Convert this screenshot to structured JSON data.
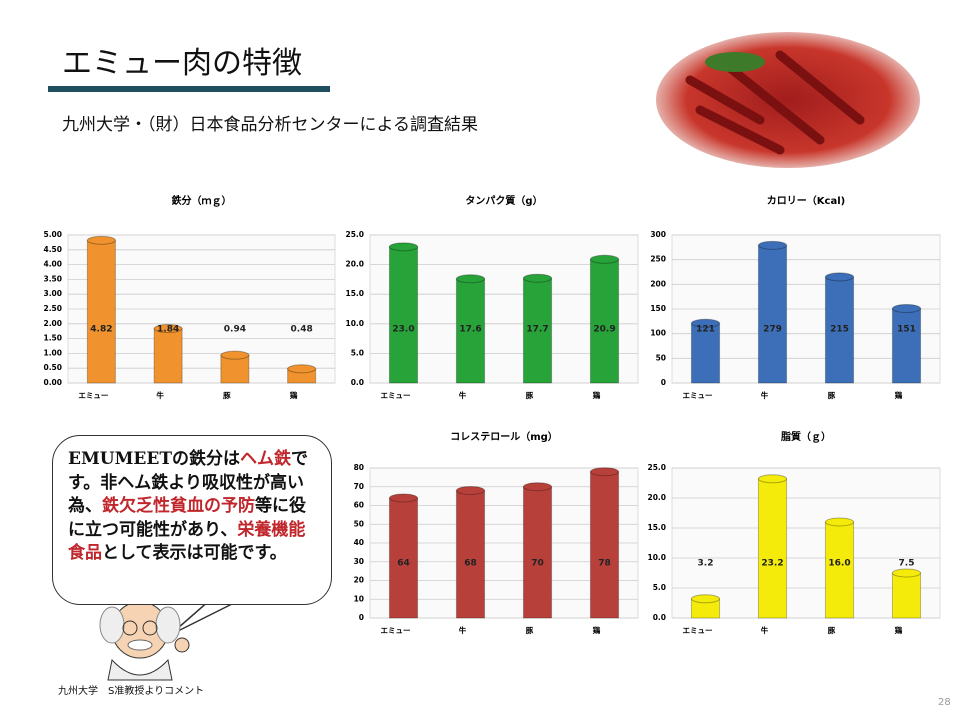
{
  "title": "エミュー肉の特徴",
  "subtitle": "九州大学・（財）日本食品分析センターによる調査結果",
  "comment": [
    {
      "text": "EMUMEETの鉄分は",
      "highlight": false
    },
    {
      "text": "ヘム鉄",
      "highlight": true
    },
    {
      "text": "です。非ヘム鉄より吸収性が高い為、",
      "highlight": false
    },
    {
      "text": "鉄欠乏性貧血の予防",
      "highlight": true
    },
    {
      "text": "等に役に立つ可能性があり、",
      "highlight": false
    },
    {
      "text": "栄養機能食品",
      "highlight": true
    },
    {
      "text": "として表示は可能です。",
      "highlight": false
    }
  ],
  "caption": "九州大学　S准教授よりコメント",
  "page_number": "28",
  "chart_data": [
    {
      "type": "bar",
      "title": "鉄分（ｍｇ）",
      "categories": [
        "エミュー",
        "牛",
        "豚",
        "鶏"
      ],
      "values": [
        4.82,
        1.84,
        0.94,
        0.48
      ],
      "color": "#f0922e",
      "ylim": [
        0,
        5
      ],
      "yticks": [
        {
          "value": 0,
          "label": "0.00"
        },
        {
          "value": 0.5,
          "label": "0.50"
        },
        {
          "value": 1,
          "label": "1.00"
        },
        {
          "value": 1.5,
          "label": "1.50"
        },
        {
          "value": 2,
          "label": "2.00"
        },
        {
          "value": 2.5,
          "label": "2.50"
        },
        {
          "value": 3,
          "label": "3.00"
        },
        {
          "value": 3.5,
          "label": "3.50"
        },
        {
          "value": 4,
          "label": "4.00"
        },
        {
          "value": 4.5,
          "label": "4.50"
        },
        {
          "value": 5,
          "label": "5.00"
        }
      ],
      "grid": true
    },
    {
      "type": "bar",
      "title": "タンパク質（g）",
      "categories": [
        "エミュー",
        "牛",
        "豚",
        "鶏"
      ],
      "values": [
        23,
        17.6,
        17.7,
        20.9
      ],
      "value_labels": [
        "23.0",
        "17.6",
        "17.7",
        "20.9"
      ],
      "color": "#27a33a",
      "ylim": [
        0,
        25
      ],
      "yticks": [
        {
          "value": 0,
          "label": "0.0"
        },
        {
          "value": 5,
          "label": "5.0"
        },
        {
          "value": 10,
          "label": "10.0"
        },
        {
          "value": 15,
          "label": "15.0"
        },
        {
          "value": 20,
          "label": "20.0"
        },
        {
          "value": 25,
          "label": "25.0"
        }
      ],
      "grid": true
    },
    {
      "type": "bar",
      "title": "カロリー（Kcal)",
      "categories": [
        "エミュー",
        "牛",
        "豚",
        "鶏"
      ],
      "values": [
        121,
        279,
        215,
        151
      ],
      "color": "#3d6fb8",
      "ylim": [
        0,
        300
      ],
      "yticks": [
        0,
        50,
        100,
        150,
        200,
        250,
        300
      ],
      "grid": true
    },
    {
      "type": "bar",
      "title": "コレステロール（mg）",
      "categories": [
        "エミュー",
        "牛",
        "豚",
        "鶏"
      ],
      "values": [
        64,
        68,
        70,
        78
      ],
      "color": "#b8403a",
      "ylim": [
        0,
        80
      ],
      "yticks": [
        0,
        10,
        20,
        30,
        40,
        50,
        60,
        70,
        80
      ],
      "grid": true
    },
    {
      "type": "bar",
      "title": "脂質（ｇ）",
      "categories": [
        "エミュー",
        "牛",
        "豚",
        "鶏"
      ],
      "values": [
        3.2,
        23.2,
        16,
        7.5
      ],
      "value_labels": [
        "3.2",
        "23.2",
        "16.0",
        "7.5"
      ],
      "color": "#f5eb0a",
      "ylim": [
        0,
        25
      ],
      "yticks": [
        {
          "value": 0,
          "label": "0.0"
        },
        {
          "value": 5,
          "label": "5.0"
        },
        {
          "value": 10,
          "label": "10.0"
        },
        {
          "value": 15,
          "label": "15.0"
        },
        {
          "value": 20,
          "label": "20.0"
        },
        {
          "value": 25,
          "label": "25.0"
        }
      ],
      "grid": true
    }
  ]
}
